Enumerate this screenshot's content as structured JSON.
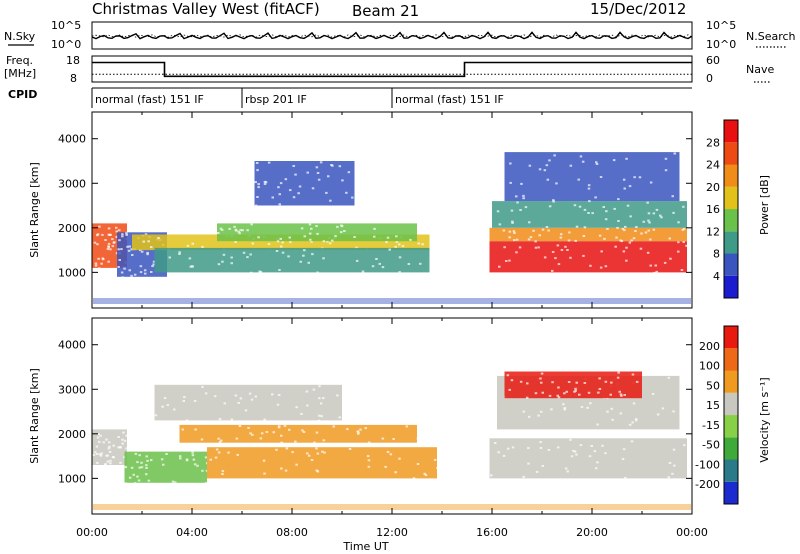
{
  "header": {
    "station": "Christmas Valley West (fitACF)",
    "beam": "Beam 21",
    "date": "15/Dec/2012"
  },
  "noise_panel": {
    "left_label": "N.Sky",
    "left_ticks": [
      "10^5",
      "10^0"
    ],
    "right_ticks": [
      "10^5",
      "10^0"
    ],
    "right_label": "N.Search"
  },
  "freq_panel": {
    "left_label_1": "Freq.",
    "left_label_2": "[MHz]",
    "left_ticks": [
      "18",
      "8"
    ],
    "right_ticks": [
      "60",
      "0"
    ],
    "right_label": "Nave",
    "freq_steps": [
      {
        "t0": 0.0,
        "t1": 2.9,
        "mhz": 15.5
      },
      {
        "t0": 2.9,
        "t1": 14.9,
        "mhz": 10.2
      },
      {
        "t0": 14.9,
        "t1": 24.0,
        "mhz": 15.5
      }
    ],
    "nave_level": 18
  },
  "cpid_panel": {
    "label": "CPID",
    "segments": [
      {
        "name": "normal (fast) 151 IF",
        "t0": 0.0,
        "t1": 6.0
      },
      {
        "name": "rbsp 201 IF",
        "t0": 6.0,
        "t1": 12.0
      },
      {
        "name": "normal (fast) 151 IF",
        "t0": 12.0,
        "t1": 24.0
      }
    ]
  },
  "chart_data": [
    {
      "type": "heatmap",
      "panel": "power",
      "ylabel": "Slant Range [km]",
      "yticks": [
        1000,
        2000,
        3000,
        4000
      ],
      "ylim": [
        200,
        4600
      ],
      "xlim": [
        0,
        24
      ],
      "colorbar": {
        "label": "Power [dB]",
        "ticks": [
          "4",
          "8",
          "12",
          "16",
          "20",
          "24",
          "28"
        ],
        "colors": [
          "#1b1bd0",
          "#3a55c0",
          "#3f9a88",
          "#6bc24a",
          "#e2c21a",
          "#f08c18",
          "#ee4a14",
          "#e81010"
        ]
      },
      "bands": [
        {
          "t0": 0.0,
          "t1": 1.4,
          "r0": 1100,
          "r1": 2100,
          "color": "#ee4a14"
        },
        {
          "t0": 1.0,
          "t1": 3.0,
          "r0": 900,
          "r1": 1900,
          "color": "#3a55c0"
        },
        {
          "t0": 1.6,
          "t1": 13.5,
          "r0": 1500,
          "r1": 1850,
          "color": "#e2c21a"
        },
        {
          "t0": 2.5,
          "t1": 13.5,
          "r0": 1000,
          "r1": 1550,
          "color": "#3f9a88"
        },
        {
          "t0": 5.0,
          "t1": 13.0,
          "r0": 1700,
          "r1": 2100,
          "color": "#6bc24a"
        },
        {
          "t0": 6.5,
          "t1": 10.5,
          "r0": 2500,
          "r1": 3500,
          "color": "#3a55c0"
        },
        {
          "t0": 15.9,
          "t1": 23.8,
          "r0": 1000,
          "r1": 1700,
          "color": "#e81010"
        },
        {
          "t0": 15.9,
          "t1": 23.8,
          "r0": 1700,
          "r1": 2000,
          "color": "#f08c18"
        },
        {
          "t0": 16.0,
          "t1": 23.8,
          "r0": 2000,
          "r1": 2600,
          "color": "#3f9a88"
        },
        {
          "t0": 16.5,
          "t1": 23.5,
          "r0": 2600,
          "r1": 3700,
          "color": "#3a55c0"
        }
      ]
    },
    {
      "type": "heatmap",
      "panel": "velocity",
      "ylabel": "Slant Range [km]",
      "yticks": [
        1000,
        2000,
        3000,
        4000
      ],
      "ylim": [
        200,
        4600
      ],
      "xlim": [
        0,
        24
      ],
      "xlabel": "Time UT",
      "xticks": [
        "00:00",
        "04:00",
        "08:00",
        "12:00",
        "16:00",
        "20:00",
        "00:00"
      ],
      "colorbar": {
        "label": "Velocity [m s⁻¹]",
        "ticks": [
          "200",
          "100",
          "50",
          "15",
          "-15",
          "-50",
          "-100",
          "-200"
        ],
        "colors": [
          "#1b2bd0",
          "#2a7a8a",
          "#3faa3a",
          "#88d048",
          "#c8c8c0",
          "#f09a20",
          "#ee6818",
          "#e81a10"
        ]
      },
      "bands": [
        {
          "t0": 0.0,
          "t1": 1.4,
          "r0": 1300,
          "r1": 2100,
          "color": "#c8c8c0"
        },
        {
          "t0": 1.3,
          "t1": 4.6,
          "r0": 900,
          "r1": 1600,
          "color": "#6bc04a"
        },
        {
          "t0": 4.6,
          "t1": 13.8,
          "r0": 1000,
          "r1": 1700,
          "color": "#f09a20"
        },
        {
          "t0": 3.5,
          "t1": 13.0,
          "r0": 1800,
          "r1": 2200,
          "color": "#f09a20"
        },
        {
          "t0": 2.5,
          "t1": 10.0,
          "r0": 2300,
          "r1": 3100,
          "color": "#c8c8c0"
        },
        {
          "t0": 15.9,
          "t1": 23.8,
          "r0": 1000,
          "r1": 1900,
          "color": "#c8c8c0"
        },
        {
          "t0": 16.2,
          "t1": 23.5,
          "r0": 2100,
          "r1": 3300,
          "color": "#c8c8c0"
        },
        {
          "t0": 16.5,
          "t1": 22.0,
          "r0": 2800,
          "r1": 3400,
          "color": "#e81a10"
        }
      ]
    }
  ]
}
